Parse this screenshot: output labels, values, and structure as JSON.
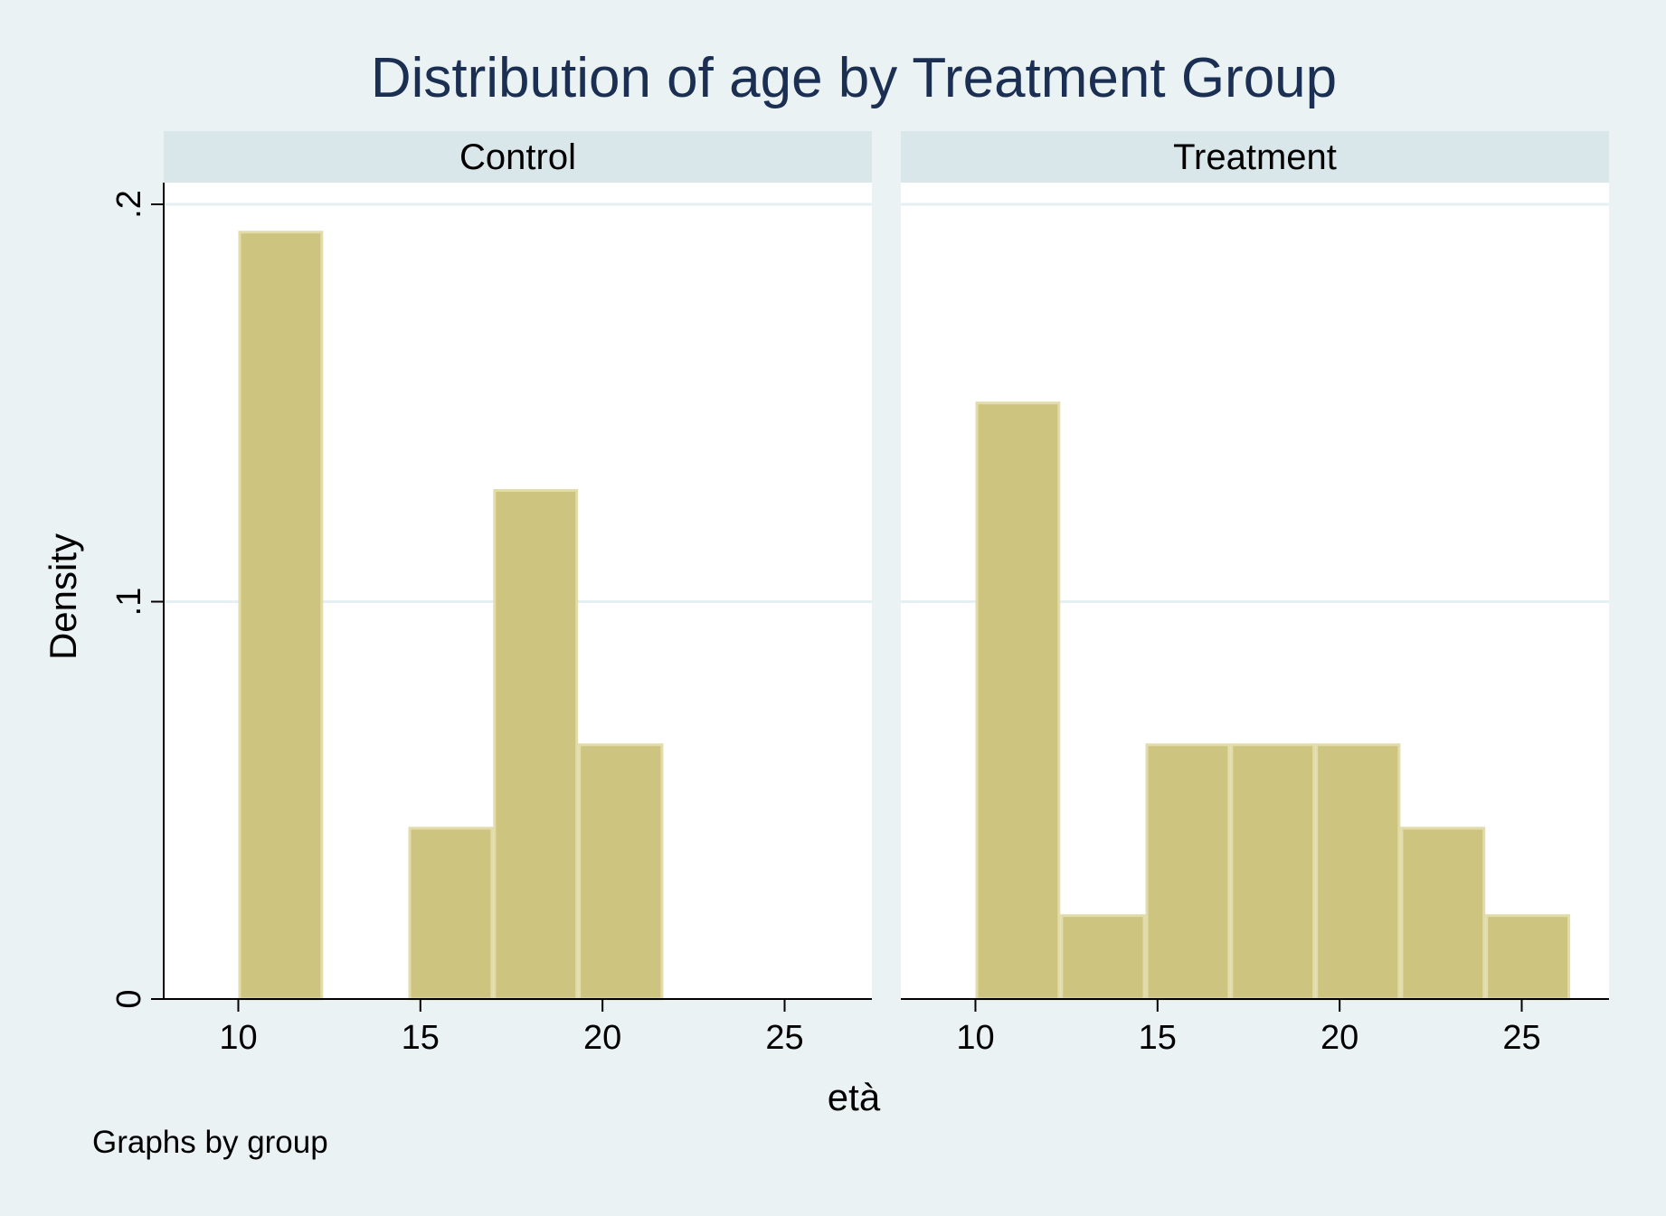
{
  "chart_data": {
    "type": "bar",
    "title": "Distribution of age by Treatment Group",
    "xlabel": "età",
    "ylabel": "Density",
    "note": "Graphs by group",
    "xlim": [
      8.2,
      26.9
    ],
    "ylim": [
      0,
      0.2
    ],
    "xticks": [
      10,
      15,
      20,
      25
    ],
    "xtick_labels": [
      "10",
      "15",
      "20",
      "25"
    ],
    "yticks": [
      0,
      0.1,
      0.2
    ],
    "ytick_labels": [
      "0",
      ".1",
      ".2"
    ],
    "grid": true,
    "bar_color": "#cdc47f",
    "bar_edge_color": "#e2dcab",
    "panels": [
      {
        "name": "Control",
        "bins": [
          {
            "x0": 10.0,
            "x1": 12.33,
            "density": 0.193
          },
          {
            "x0": 14.67,
            "x1": 17.0,
            "density": 0.043
          },
          {
            "x0": 17.0,
            "x1": 19.33,
            "density": 0.128
          },
          {
            "x0": 19.33,
            "x1": 21.67,
            "density": 0.064
          }
        ]
      },
      {
        "name": "Treatment",
        "bins": [
          {
            "x0": 10.0,
            "x1": 12.33,
            "density": 0.15
          },
          {
            "x0": 12.33,
            "x1": 14.67,
            "density": 0.021
          },
          {
            "x0": 14.67,
            "x1": 17.0,
            "density": 0.064
          },
          {
            "x0": 17.0,
            "x1": 19.33,
            "density": 0.064
          },
          {
            "x0": 19.33,
            "x1": 21.67,
            "density": 0.064
          },
          {
            "x0": 21.67,
            "x1": 24.0,
            "density": 0.043
          },
          {
            "x0": 24.0,
            "x1": 26.33,
            "density": 0.021
          }
        ]
      }
    ]
  }
}
